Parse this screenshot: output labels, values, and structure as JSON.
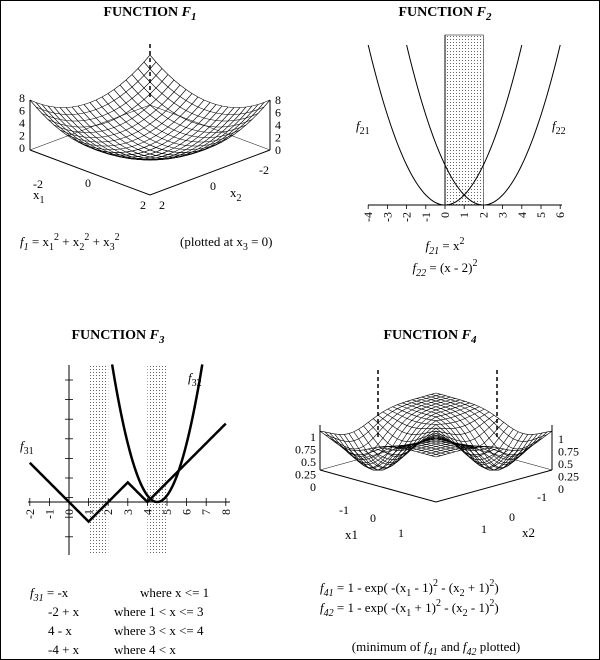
{
  "panels": [
    {
      "title": [
        {
          "text": "FUNCTION "
        },
        {
          "text": "F",
          "style": "it"
        },
        {
          "text": "1",
          "style": "itsub"
        }
      ],
      "z_left_ticks": [
        8,
        6,
        4,
        2,
        0
      ],
      "z_right_ticks": [
        8,
        6,
        4,
        2,
        0
      ],
      "x1_ticks": [
        -2,
        0,
        2
      ],
      "x2_ticks": [
        -2,
        0,
        2
      ],
      "x1_label": [
        {
          "text": "x"
        },
        {
          "text": "1",
          "style": "sub"
        }
      ],
      "x2_label": [
        {
          "text": "x"
        },
        {
          "text": "2",
          "style": "sub"
        }
      ],
      "formulas": [
        [
          {
            "text": "f",
            "style": "it"
          },
          {
            "text": "1",
            "style": "itsub"
          },
          {
            "text": " = x"
          },
          {
            "text": "1",
            "style": "sub"
          },
          {
            "text": "2",
            "style": "sup"
          },
          {
            "text": " + x"
          },
          {
            "text": "2",
            "style": "sub"
          },
          {
            "text": "2",
            "style": "sup"
          },
          {
            "text": " + x"
          },
          {
            "text": "3",
            "style": "sub"
          },
          {
            "text": "2",
            "style": "sup"
          }
        ]
      ],
      "note": [
        {
          "text": "(plotted at x"
        },
        {
          "text": "3",
          "style": "sub"
        },
        {
          "text": " = 0)"
        }
      ]
    },
    {
      "title": [
        {
          "text": "FUNCTION "
        },
        {
          "text": "F",
          "style": "it"
        },
        {
          "text": "2",
          "style": "itsub"
        }
      ],
      "x_ticks": [
        -4,
        -3,
        -2,
        -1,
        0,
        1,
        2,
        3,
        4,
        5,
        6
      ],
      "curve_labels": [
        [
          {
            "text": "f",
            "style": "it"
          },
          {
            "text": "21",
            "style": "sub"
          }
        ],
        [
          {
            "text": "f",
            "style": "it"
          },
          {
            "text": "22",
            "style": "sub"
          }
        ]
      ],
      "formulas": [
        [
          {
            "text": "f",
            "style": "it"
          },
          {
            "text": "21",
            "style": "itsub"
          },
          {
            "text": " = x"
          },
          {
            "text": "2",
            "style": "sup"
          }
        ],
        [
          {
            "text": "f",
            "style": "it"
          },
          {
            "text": "22",
            "style": "itsub"
          },
          {
            "text": " = (x - 2)"
          },
          {
            "text": "2",
            "style": "sup"
          }
        ]
      ]
    },
    {
      "title": [
        {
          "text": "FUNCTION "
        },
        {
          "text": "F",
          "style": "it"
        },
        {
          "text": "3",
          "style": "itsub"
        }
      ],
      "x_ticks": [
        -2,
        -1,
        0,
        1,
        2,
        3,
        4,
        5,
        6,
        7,
        8
      ],
      "curve_labels": [
        [
          {
            "text": "f",
            "style": "it"
          },
          {
            "text": "31",
            "style": "sub"
          }
        ],
        [
          {
            "text": "f",
            "style": "it"
          },
          {
            "text": "32",
            "style": "sub"
          }
        ]
      ],
      "rows": [
        {
          "expr": [
            {
              "text": "f",
              "style": "it"
            },
            {
              "text": "31",
              "style": "itsub"
            },
            {
              "text": " = -x"
            }
          ],
          "cond": "where x <= 1"
        },
        {
          "expr": [
            {
              "text": "-2 + x"
            }
          ],
          "cond": "where 1 < x <= 3"
        },
        {
          "expr": [
            {
              "text": "4 - x"
            }
          ],
          "cond": "where 3 < x <= 4"
        },
        {
          "expr": [
            {
              "text": "-4 + x"
            }
          ],
          "cond": "where 4 < x"
        }
      ]
    },
    {
      "title": [
        {
          "text": "FUNCTION "
        },
        {
          "text": "F",
          "style": "it"
        },
        {
          "text": "4",
          "style": "itsub"
        }
      ],
      "z_left_ticks": [
        1,
        0.75,
        0.5,
        0.25,
        0
      ],
      "z_right_ticks": [
        1,
        0.75,
        0.5,
        0.25,
        0
      ],
      "x1_ticks": [
        -1,
        0,
        1
      ],
      "x2_ticks": [
        -1,
        0,
        1
      ],
      "x1_label": [
        {
          "text": "x1"
        }
      ],
      "x2_label": [
        {
          "text": "x2"
        }
      ],
      "formulas": [
        [
          {
            "text": "f",
            "style": "it"
          },
          {
            "text": "41",
            "style": "itsub"
          },
          {
            "text": " = 1 - exp( -(x"
          },
          {
            "text": "1",
            "style": "sub"
          },
          {
            "text": " - 1)"
          },
          {
            "text": "2",
            "style": "sup"
          },
          {
            "text": " - (x"
          },
          {
            "text": "2",
            "style": "sub"
          },
          {
            "text": " + 1)"
          },
          {
            "text": "2",
            "style": "sup"
          },
          {
            "text": ")"
          }
        ],
        [
          {
            "text": "f",
            "style": "it"
          },
          {
            "text": "42",
            "style": "itsub"
          },
          {
            "text": " = 1 - exp( -(x"
          },
          {
            "text": "1",
            "style": "sub"
          },
          {
            "text": " + 1)"
          },
          {
            "text": "2",
            "style": "sup"
          },
          {
            "text": " - (x"
          },
          {
            "text": "2",
            "style": "sub"
          },
          {
            "text": " - 1)"
          },
          {
            "text": "2",
            "style": "sup"
          },
          {
            "text": ")"
          }
        ]
      ],
      "note": [
        {
          "text": "(minimum of "
        },
        {
          "text": "f",
          "style": "it"
        },
        {
          "text": "41",
          "style": "itsub"
        },
        {
          "text": " and "
        },
        {
          "text": "f",
          "style": "it"
        },
        {
          "text": "42",
          "style": "itsub"
        },
        {
          "text": " plotted)"
        }
      ]
    }
  ]
}
